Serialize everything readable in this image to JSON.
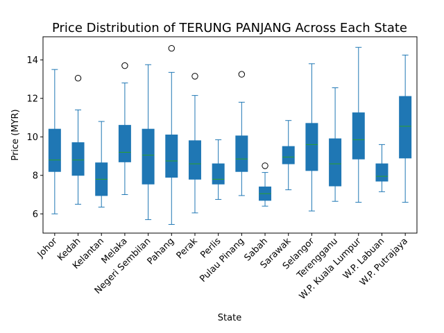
{
  "chart_data": {
    "type": "box",
    "title": "Price Distribution of TERUNG PANJANG Across Each State",
    "xlabel": "State",
    "ylabel": "Price (MYR)",
    "ylim": [
      5.0,
      15.2
    ],
    "yticks": [
      6,
      8,
      10,
      12,
      14
    ],
    "grid": false,
    "legend": "none",
    "colors": {
      "box": "#1f77b4",
      "median": "#2ca02c",
      "whisker": "#1f77b4",
      "flier": "#000000"
    },
    "categories": [
      "Johor",
      "Kedah",
      "Kelantan",
      "Melaka",
      "Negeri Sembilan",
      "Pahang",
      "Perak",
      "Perlis",
      "Pulau Pinang",
      "Sabah",
      "Sarawak",
      "Selangor",
      "Terengganu",
      "W.P. Kuala Lumpur",
      "W.P. Labuan",
      "W.P. Putrajaya"
    ],
    "boxes": [
      {
        "whislo": 6.0,
        "q1": 8.2,
        "med": 8.8,
        "q3": 10.4,
        "whishi": 13.5,
        "fliers": []
      },
      {
        "whislo": 6.5,
        "q1": 8.0,
        "med": 8.8,
        "q3": 9.7,
        "whishi": 11.4,
        "fliers": [
          13.05
        ]
      },
      {
        "whislo": 6.35,
        "q1": 6.95,
        "med": 7.8,
        "q3": 8.65,
        "whishi": 10.8,
        "fliers": []
      },
      {
        "whislo": 7.0,
        "q1": 8.7,
        "med": 9.2,
        "q3": 10.6,
        "whishi": 12.8,
        "fliers": [
          13.7
        ]
      },
      {
        "whislo": 5.7,
        "q1": 7.55,
        "med": 9.05,
        "q3": 10.4,
        "whishi": 13.75,
        "fliers": []
      },
      {
        "whislo": 5.45,
        "q1": 7.9,
        "med": 8.75,
        "q3": 10.1,
        "whishi": 13.35,
        "fliers": [
          14.6
        ]
      },
      {
        "whislo": 6.05,
        "q1": 7.8,
        "med": 8.6,
        "q3": 9.8,
        "whishi": 12.15,
        "fliers": [
          13.15
        ]
      },
      {
        "whislo": 6.75,
        "q1": 7.55,
        "med": 7.8,
        "q3": 8.6,
        "whishi": 9.85,
        "fliers": []
      },
      {
        "whislo": 6.95,
        "q1": 8.2,
        "med": 8.85,
        "q3": 10.05,
        "whishi": 11.8,
        "fliers": [
          13.25
        ]
      },
      {
        "whislo": 6.4,
        "q1": 6.7,
        "med": 7.05,
        "q3": 7.4,
        "whishi": 8.15,
        "fliers": [
          8.5
        ]
      },
      {
        "whislo": 7.25,
        "q1": 8.6,
        "med": 8.95,
        "q3": 9.5,
        "whishi": 10.85,
        "fliers": []
      },
      {
        "whislo": 6.15,
        "q1": 8.25,
        "med": 9.6,
        "q3": 10.7,
        "whishi": 13.8,
        "fliers": []
      },
      {
        "whislo": 6.65,
        "q1": 7.45,
        "med": 8.6,
        "q3": 9.9,
        "whishi": 12.55,
        "fliers": []
      },
      {
        "whislo": 6.6,
        "q1": 8.85,
        "med": 9.85,
        "q3": 11.25,
        "whishi": 14.65,
        "fliers": []
      },
      {
        "whislo": 7.15,
        "q1": 7.7,
        "med": 7.95,
        "q3": 8.6,
        "whishi": 9.6,
        "fliers": []
      },
      {
        "whislo": 6.6,
        "q1": 8.9,
        "med": 10.55,
        "q3": 12.1,
        "whishi": 14.25,
        "fliers": []
      }
    ]
  }
}
